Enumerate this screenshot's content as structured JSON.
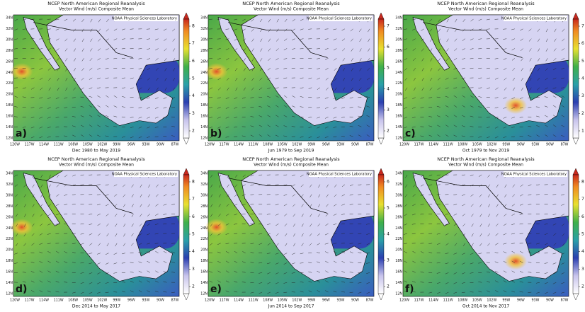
{
  "title": "NCEP North American Regional Reanalysis",
  "subtitle": "Vector Wind (m/s) Composite Mean",
  "credit": "NOAA Physical Sciences Laboratory",
  "lon_labels": [
    "120W",
    "117W",
    "114W",
    "111W",
    "108W",
    "105W",
    "102W",
    "99W",
    "96W",
    "93W",
    "90W",
    "87W"
  ],
  "lat_labels": [
    "34N",
    "32N",
    "30N",
    "28N",
    "26N",
    "24N",
    "22N",
    "20N",
    "18N",
    "16N",
    "14N",
    "12N"
  ],
  "panels": [
    {
      "label": "a)",
      "period": "Dec 1980 to May 2019",
      "colorbar": [
        8,
        7,
        6,
        5,
        4,
        3,
        2
      ]
    },
    {
      "label": "b)",
      "period": "Jun 1979 to Sep 2019",
      "colorbar": [
        7,
        6,
        5,
        4,
        3,
        2
      ]
    },
    {
      "label": "c)",
      "period": "Oct 1979 to Nov 2019",
      "colorbar": [
        7,
        6,
        5,
        4,
        3,
        2,
        1
      ]
    },
    {
      "label": "d)",
      "period": "Dec 2014 to May 2017",
      "colorbar": [
        8,
        7,
        6,
        5,
        4,
        3,
        2
      ]
    },
    {
      "label": "e)",
      "period": "Jun 2014 to Sep 2017",
      "colorbar": [
        6,
        5,
        4,
        3,
        2
      ]
    },
    {
      "label": "f)",
      "period": "Oct 2014 to Nov 2017",
      "colorbar": [
        8,
        7,
        6,
        5,
        4,
        3,
        2
      ]
    }
  ]
}
